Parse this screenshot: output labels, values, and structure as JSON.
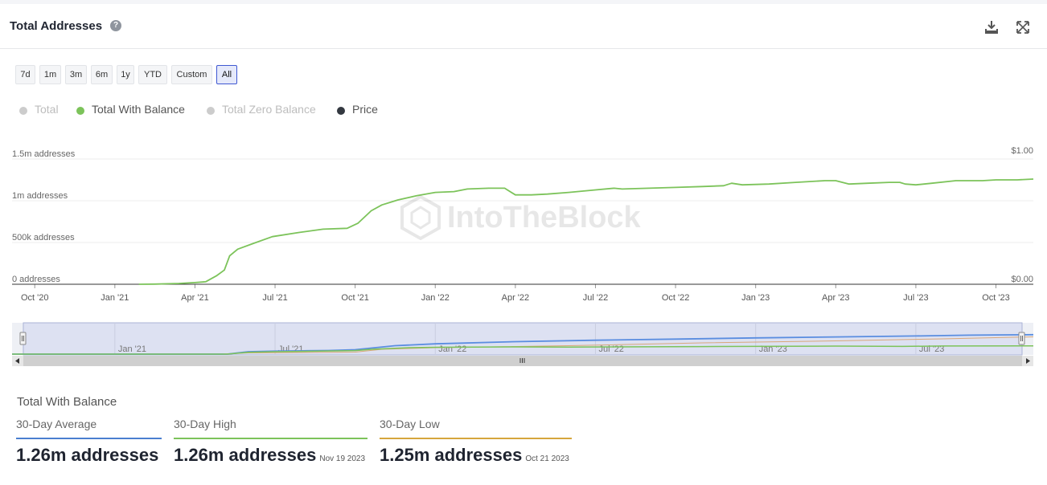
{
  "header": {
    "title": "Total Addresses"
  },
  "range_buttons": [
    "7d",
    "1m",
    "3m",
    "6m",
    "1y",
    "YTD",
    "Custom",
    "All"
  ],
  "active_range": "All",
  "legend": [
    {
      "label": "Total",
      "color": "#cccccc",
      "active": false
    },
    {
      "label": "Total With Balance",
      "color": "#7cc35a",
      "active": true
    },
    {
      "label": "Total Zero Balance",
      "color": "#cccccc",
      "active": false
    },
    {
      "label": "Price",
      "color": "#333840",
      "active": true
    }
  ],
  "watermark": "IntoTheBlock",
  "chart_data": {
    "type": "line",
    "title": "Total Addresses",
    "y_tick_labels": [
      "0 addresses",
      "500k addresses",
      "1m addresses",
      "1.5m addresses"
    ],
    "y_ticks": [
      0,
      500000,
      1000000,
      1500000
    ],
    "y_right_tick_labels": [
      "$0.00",
      "$1.00"
    ],
    "ylim": [
      0,
      1500000
    ],
    "x_tick_labels": [
      "Oct '20",
      "Jan '21",
      "Apr '21",
      "Jul '21",
      "Oct '21",
      "Jan '22",
      "Apr '22",
      "Jul '22",
      "Oct '22",
      "Jan '23",
      "Apr '23",
      "Jul '23",
      "Oct '23"
    ],
    "x_ticks": [
      0,
      3,
      6,
      9,
      12,
      15,
      18,
      21,
      24,
      27,
      30,
      33,
      36
    ],
    "xlim": [
      -0.85,
      37.4
    ],
    "series": [
      {
        "name": "Total With Balance",
        "color": "#7cc35a",
        "x": [
          3.9,
          4.5,
          5.4,
          6.0,
          6.4,
          6.8,
          7.1,
          7.3,
          7.6,
          8.2,
          8.9,
          9.9,
          10.8,
          11.7,
          12.1,
          12.6,
          13.0,
          13.6,
          14.3,
          15.0,
          15.7,
          16.2,
          17.0,
          17.6,
          18.0,
          18.6,
          19.2,
          20.0,
          21.0,
          21.7,
          22.0,
          23.0,
          24.0,
          25.0,
          25.8,
          26.1,
          26.5,
          27.5,
          28.5,
          29.6,
          30.0,
          30.5,
          31.2,
          32.0,
          32.4,
          32.6,
          33.0,
          33.6,
          34.5,
          35.5,
          36.0,
          36.8,
          37.4
        ],
        "y": [
          0,
          2000,
          10000,
          20000,
          30000,
          100000,
          170000,
          340000,
          420000,
          490000,
          570000,
          620000,
          660000,
          670000,
          730000,
          880000,
          950000,
          1010000,
          1060000,
          1100000,
          1110000,
          1140000,
          1150000,
          1150000,
          1070000,
          1070000,
          1080000,
          1100000,
          1130000,
          1150000,
          1140000,
          1150000,
          1160000,
          1170000,
          1180000,
          1210000,
          1190000,
          1200000,
          1220000,
          1240000,
          1240000,
          1200000,
          1210000,
          1220000,
          1220000,
          1200000,
          1190000,
          1210000,
          1240000,
          1240000,
          1250000,
          1250000,
          1260000
        ]
      }
    ]
  },
  "navigator": {
    "x_tick_labels": [
      "Jan '21",
      "Jul '21",
      "Jan '22",
      "Jul '22",
      "Jan '23",
      "Jul '23"
    ],
    "x_ticks": [
      3,
      9,
      15,
      21,
      27,
      33
    ],
    "xlim": [
      -0.85,
      37.4
    ],
    "series": [
      {
        "name": "Total",
        "color": "#5a8de0",
        "x": [
          -0.85,
          7.2,
          8.0,
          9.0,
          10.0,
          11.0,
          12.0,
          12.6,
          13.5,
          15.0,
          18.0,
          21.0,
          24.0,
          27.0,
          30.0,
          33.0,
          35.0,
          37.4
        ],
        "y": [
          0,
          0,
          3,
          3.7,
          4.1,
          4.5,
          5.5,
          7.5,
          10.5,
          12.8,
          15.5,
          17.3,
          18.7,
          20.2,
          21.4,
          22.6,
          23.6,
          24.2
        ]
      },
      {
        "name": "Price",
        "color": "#d9a77a",
        "x": [
          -0.85,
          7.0,
          8.0,
          12.0,
          13.0,
          15.0,
          20.0,
          25.0,
          30.0,
          34.0,
          37.4
        ],
        "y": [
          0,
          0,
          1.5,
          2.5,
          6.0,
          8.0,
          10.5,
          14.0,
          16.5,
          19.0,
          21.5
        ]
      },
      {
        "name": "Total With Balance",
        "color": "#7cc35a",
        "x": [
          -0.85,
          7.2,
          8.0,
          9.0,
          12.0,
          12.6,
          14.0,
          15.0,
          18.0,
          20.0,
          25.0,
          30.0,
          32.5,
          34.0,
          37.4
        ],
        "y": [
          0,
          0,
          2.2,
          3.0,
          4.4,
          6.0,
          8.0,
          8.5,
          9.0,
          8.8,
          9.4,
          10.0,
          9.6,
          10.1,
          10.3
        ]
      }
    ]
  },
  "summary": {
    "title": "Total With Balance",
    "stats": [
      {
        "label": "30-Day Average",
        "value": "1.26m addresses",
        "date": "",
        "color": "#4a7fd0"
      },
      {
        "label": "30-Day High",
        "value": "1.26m addresses",
        "date": "Nov 19 2023",
        "color": "#7cc35a"
      },
      {
        "label": "30-Day Low",
        "value": "1.25m addresses",
        "date": "Oct 21 2023",
        "color": "#d6a63c"
      }
    ]
  }
}
